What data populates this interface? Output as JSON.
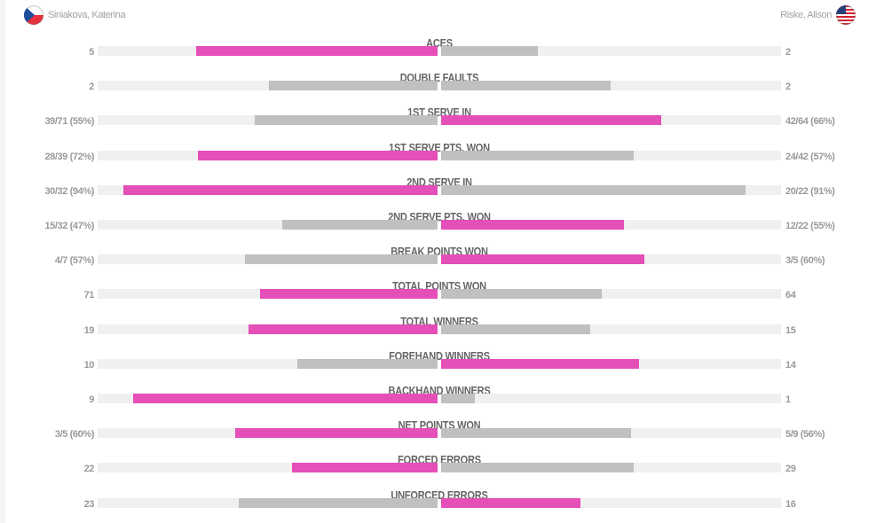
{
  "players": {
    "left": {
      "name": "Siniakova, Katerina",
      "flag_icon": "czech-flag-icon"
    },
    "right": {
      "name": "Riske, Alison",
      "flag_icon": "usa-flag-icon"
    }
  },
  "colors": {
    "highlight": "#e44fb8",
    "neutral": "#c0c0c0",
    "track": "#f0f0f0"
  },
  "stats": [
    {
      "label": "ACES",
      "left": "5",
      "right": "2",
      "left_pct": 71.0,
      "right_pct": 28.5,
      "highlight": "left"
    },
    {
      "label": "DOUBLE FAULTS",
      "left": "2",
      "right": "2",
      "left_pct": 49.6,
      "right_pct": 49.9,
      "highlight": "none"
    },
    {
      "label": "1ST SERVE IN",
      "left": "39/71 (55%)",
      "right": "42/64 (66%)",
      "left_pct": 53.8,
      "right_pct": 64.8,
      "highlight": "right"
    },
    {
      "label": "1ST SERVE PTS. WON",
      "left": "28/39 (72%)",
      "right": "24/42 (57%)",
      "left_pct": 70.5,
      "right_pct": 56.7,
      "highlight": "left"
    },
    {
      "label": "2ND SERVE IN",
      "left": "30/32 (94%)",
      "right": "20/22 (91%)",
      "left_pct": 92.4,
      "right_pct": 89.6,
      "highlight": "left"
    },
    {
      "label": "2ND SERVE PTS. WON",
      "left": "15/32 (47%)",
      "right": "12/22 (55%)",
      "left_pct": 45.7,
      "right_pct": 53.8,
      "highlight": "right"
    },
    {
      "label": "BREAK POINTS WON",
      "left": "4/7 (57%)",
      "right": "3/5 (60%)",
      "left_pct": 56.7,
      "right_pct": 59.8,
      "highlight": "right"
    },
    {
      "label": "TOTAL POINTS WON",
      "left": "71",
      "right": "64",
      "left_pct": 52.2,
      "right_pct": 47.3,
      "highlight": "left"
    },
    {
      "label": "TOTAL WINNERS",
      "left": "19",
      "right": "15",
      "left_pct": 55.6,
      "right_pct": 43.9,
      "highlight": "left"
    },
    {
      "label": "FOREHAND WINNERS",
      "left": "10",
      "right": "14",
      "left_pct": 41.3,
      "right_pct": 58.2,
      "highlight": "right"
    },
    {
      "label": "BACKHAND WINNERS",
      "left": "9",
      "right": "1",
      "left_pct": 89.6,
      "right_pct": 9.9,
      "highlight": "left"
    },
    {
      "label": "NET POINTS WON",
      "left": "3/5 (60%)",
      "right": "5/9 (56%)",
      "left_pct": 59.5,
      "right_pct": 55.9,
      "highlight": "left"
    },
    {
      "label": "FORCED ERRORS",
      "left": "22",
      "right": "29",
      "left_pct": 42.8,
      "right_pct": 56.7,
      "highlight": "left"
    },
    {
      "label": "UNFORCED ERRORS",
      "left": "23",
      "right": "16",
      "left_pct": 58.5,
      "right_pct": 41.0,
      "highlight": "right"
    }
  ]
}
